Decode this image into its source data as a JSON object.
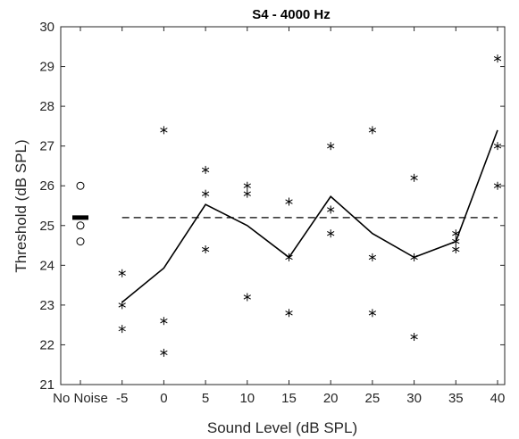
{
  "chart_data": {
    "type": "scatter",
    "title": "S4 - 4000 Hz",
    "xlabel": "Sound Level (dB SPL)",
    "ylabel": "Threshold (dB SPL)",
    "x_tick_labels": [
      "No Noise",
      "-5",
      "0",
      "5",
      "10",
      "15",
      "20",
      "25",
      "30",
      "35",
      "40"
    ],
    "y_tick_labels": [
      "21",
      "22",
      "23",
      "24",
      "25",
      "26",
      "27",
      "28",
      "29",
      "30"
    ],
    "ylim": [
      21,
      30
    ],
    "grid": false,
    "no_noise": {
      "circles": [
        26.0,
        25.0,
        24.6
      ],
      "mean_bar": 25.2
    },
    "trials": [
      {
        "x": "-5",
        "y": [
          23.8,
          23.0,
          22.4
        ]
      },
      {
        "x": "0",
        "y": [
          27.4,
          22.6,
          21.8
        ]
      },
      {
        "x": "5",
        "y": [
          26.4,
          25.8,
          24.4
        ]
      },
      {
        "x": "10",
        "y": [
          26.0,
          25.8,
          23.2
        ]
      },
      {
        "x": "15",
        "y": [
          25.6,
          24.2,
          22.8
        ]
      },
      {
        "x": "20",
        "y": [
          27.0,
          25.4,
          24.8
        ]
      },
      {
        "x": "25",
        "y": [
          27.4,
          24.2,
          22.8
        ]
      },
      {
        "x": "30",
        "y": [
          26.2,
          24.2,
          22.2
        ]
      },
      {
        "x": "35",
        "y": [
          24.8,
          24.6,
          24.4
        ]
      },
      {
        "x": "40",
        "y": [
          29.2,
          27.0,
          26.0
        ]
      }
    ],
    "mean_line": {
      "x": [
        "-5",
        "0",
        "5",
        "10",
        "15",
        "20",
        "25",
        "30",
        "35",
        "40"
      ],
      "y": [
        23.07,
        23.93,
        25.53,
        25.0,
        24.2,
        25.73,
        24.8,
        24.2,
        24.6,
        27.4
      ]
    },
    "reference_line": {
      "y": 25.2,
      "from": "-5",
      "to": "40",
      "style": "dashed"
    }
  }
}
